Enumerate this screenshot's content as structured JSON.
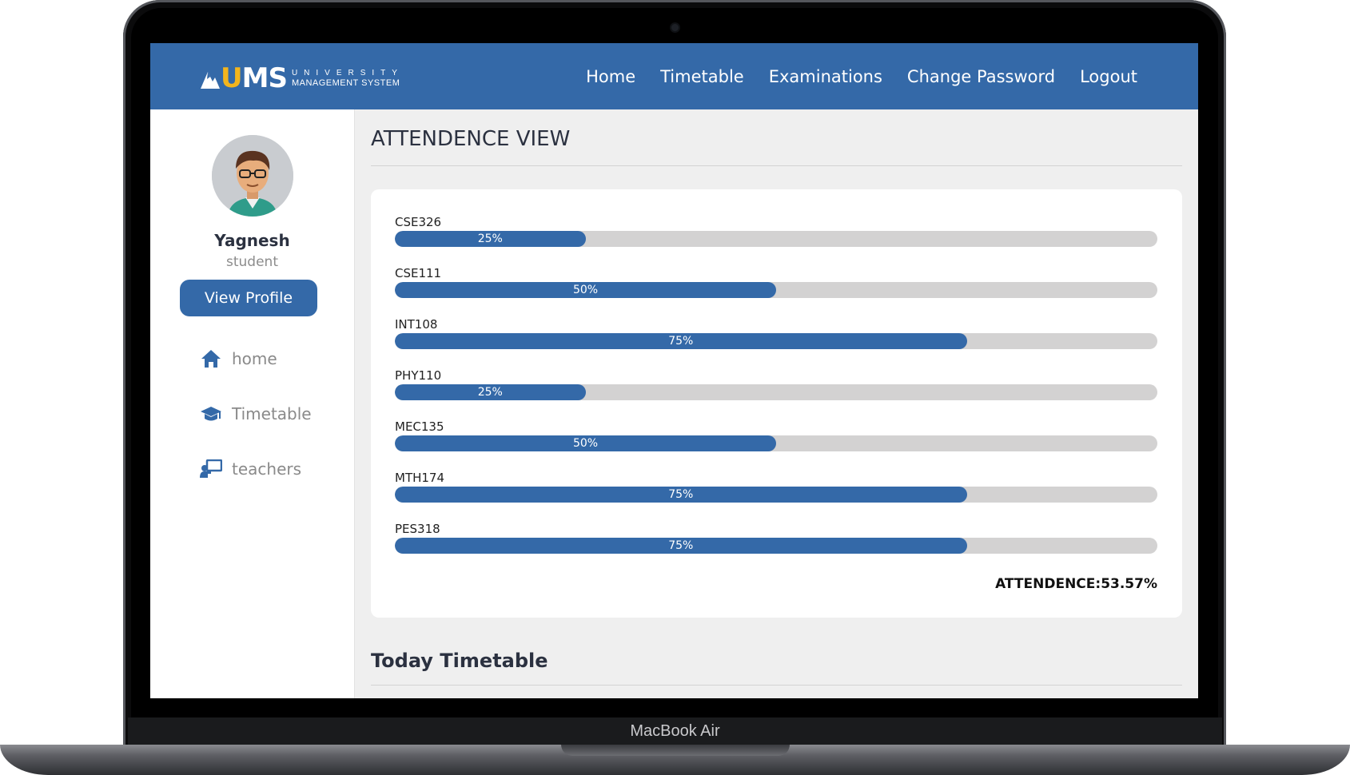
{
  "device": {
    "label": "MacBook Air"
  },
  "header": {
    "logo": {
      "mark": "UMS",
      "line1": "UNIVERSITY",
      "line2": "MANAGEMENT SYSTEM"
    },
    "nav": [
      "Home",
      "Timetable",
      "Examinations",
      "Change Password",
      "Logout"
    ]
  },
  "sidebar": {
    "user_name": "Yagnesh",
    "user_role": "student",
    "view_profile_label": "View Profile",
    "items": [
      {
        "label": "home",
        "icon": "home-icon"
      },
      {
        "label": "Timetable",
        "icon": "graduation-cap-icon"
      },
      {
        "label": "teachers",
        "icon": "teacher-board-icon"
      }
    ]
  },
  "main": {
    "title": "ATTENDENCE VIEW",
    "courses": [
      {
        "code": "CSE326",
        "percent": 25,
        "label": "25%"
      },
      {
        "code": "CSE111",
        "percent": 50,
        "label": "50%"
      },
      {
        "code": "INT108",
        "percent": 75,
        "label": "75%"
      },
      {
        "code": "PHY110",
        "percent": 25,
        "label": "25%"
      },
      {
        "code": "MEC135",
        "percent": 50,
        "label": "50%"
      },
      {
        "code": "MTH174",
        "percent": 75,
        "label": "75%"
      },
      {
        "code": "PES318",
        "percent": 75,
        "label": "75%"
      }
    ],
    "total": "ATTENDENCE:53.57%",
    "timetable_title": "Today Timetable"
  },
  "colors": {
    "primary": "#3469a8",
    "track": "#d3d2d2",
    "accent": "#f3b51d"
  }
}
